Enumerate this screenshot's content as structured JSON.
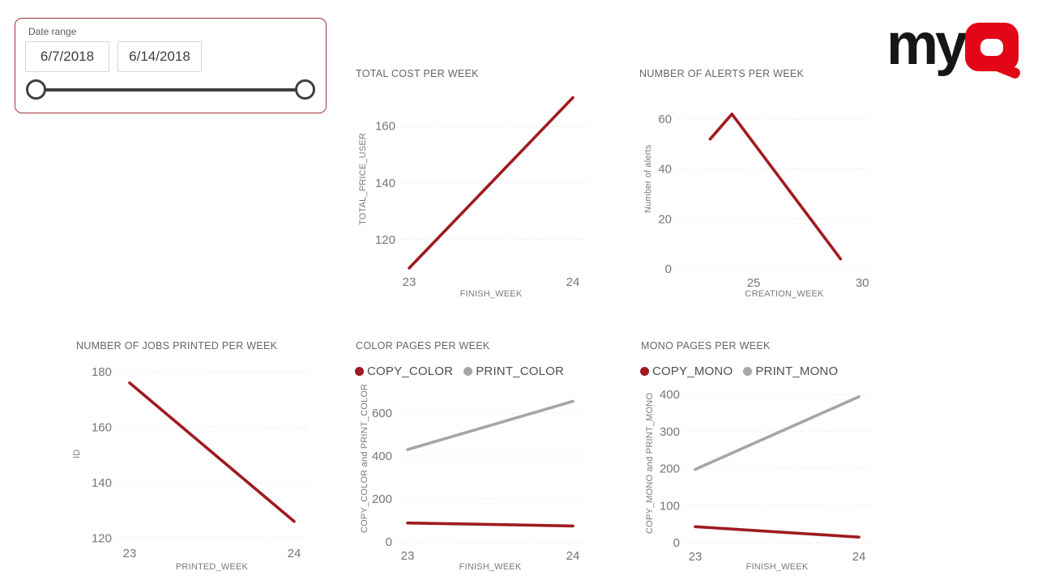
{
  "slicer": {
    "label": "Date range",
    "start_date": "6/7/2018",
    "end_date": "6/14/2018",
    "border_color": "#a5303d"
  },
  "logo": {
    "text_black": "my",
    "text_red_letter": "Q",
    "red": "#e30617",
    "black": "#161616"
  },
  "colors": {
    "series_red": "#9f1b20",
    "series_gray": "#a6a6a6",
    "grid": "#d2d2d2",
    "tick_text": "#757575",
    "title_text": "#666666"
  },
  "chart_data": [
    {
      "type": "line",
      "title": "TOTAL COST PER WEEK",
      "xlabel": "FINISH_WEEK",
      "ylabel": "TOTAL_PRICE_USER",
      "xlim": [
        23,
        24
      ],
      "ylim": [
        110,
        173
      ],
      "xticks": [
        23,
        24
      ],
      "yticks": [
        120,
        140,
        160
      ],
      "grid": true,
      "legend_position": null,
      "series": [
        {
          "name": "TOTAL_PRICE_USER",
          "color": "#9f1b20",
          "x": [
            23,
            24
          ],
          "values": [
            110,
            170
          ]
        }
      ]
    },
    {
      "type": "line",
      "title": "NUMBER OF ALERTS PER WEEK",
      "xlabel": "CREATION_WEEK",
      "ylabel": "Number of alerts",
      "xlim": [
        22.61,
        30.22
      ],
      "ylim": [
        0,
        72
      ],
      "xticks": [
        25,
        30
      ],
      "yticks": [
        0,
        20,
        40,
        60
      ],
      "grid": true,
      "legend_position": null,
      "series": [
        {
          "name": "Number of alerts",
          "color": "#9f1b20",
          "x": [
            23,
            24,
            29
          ],
          "values": [
            52,
            62,
            4
          ]
        }
      ]
    },
    {
      "type": "line",
      "title": "NUMBER OF JOBS PRINTED PER WEEK",
      "xlabel": "PRINTED_WEEK",
      "ylabel": "ID",
      "xlim": [
        23,
        24
      ],
      "ylim": [
        119.5,
        181.5
      ],
      "xticks": [
        23,
        24
      ],
      "yticks": [
        120,
        140,
        160,
        180
      ],
      "grid": true,
      "legend_position": null,
      "series": [
        {
          "name": "ID",
          "color": "#9f1b20",
          "x": [
            23,
            24
          ],
          "values": [
            176,
            126
          ]
        }
      ]
    },
    {
      "type": "line",
      "title": "COLOR PAGES PER WEEK",
      "xlabel": "FINISH_WEEK",
      "ylabel": "COPY_COLOR and PRINT_COLOR",
      "xlim": [
        23,
        24
      ],
      "ylim": [
        0,
        672
      ],
      "xticks": [
        23,
        24
      ],
      "yticks": [
        0,
        200,
        400,
        600
      ],
      "grid": true,
      "legend_position": "top",
      "series": [
        {
          "name": "COPY_COLOR",
          "color": "#9f1b20",
          "x": [
            23,
            24
          ],
          "values": [
            88,
            74
          ]
        },
        {
          "name": "PRINT_COLOR",
          "color": "#a6a6a6",
          "x": [
            23,
            24
          ],
          "values": [
            430,
            655
          ]
        }
      ]
    },
    {
      "type": "line",
      "title": "MONO PAGES PER WEEK",
      "xlabel": "FINISH_WEEK",
      "ylabel": "COPY_MONO and PRINT_MONO",
      "xlim": [
        23,
        24
      ],
      "ylim": [
        0,
        420
      ],
      "xticks": [
        23,
        24
      ],
      "yticks": [
        0,
        100,
        200,
        300,
        400
      ],
      "grid": true,
      "legend_position": "top",
      "series": [
        {
          "name": "COPY_MONO",
          "color": "#9f1b20",
          "x": [
            23,
            24
          ],
          "values": [
            43,
            15
          ]
        },
        {
          "name": "PRINT_MONO",
          "color": "#a6a6a6",
          "x": [
            23,
            24
          ],
          "values": [
            198,
            394
          ]
        }
      ]
    }
  ]
}
